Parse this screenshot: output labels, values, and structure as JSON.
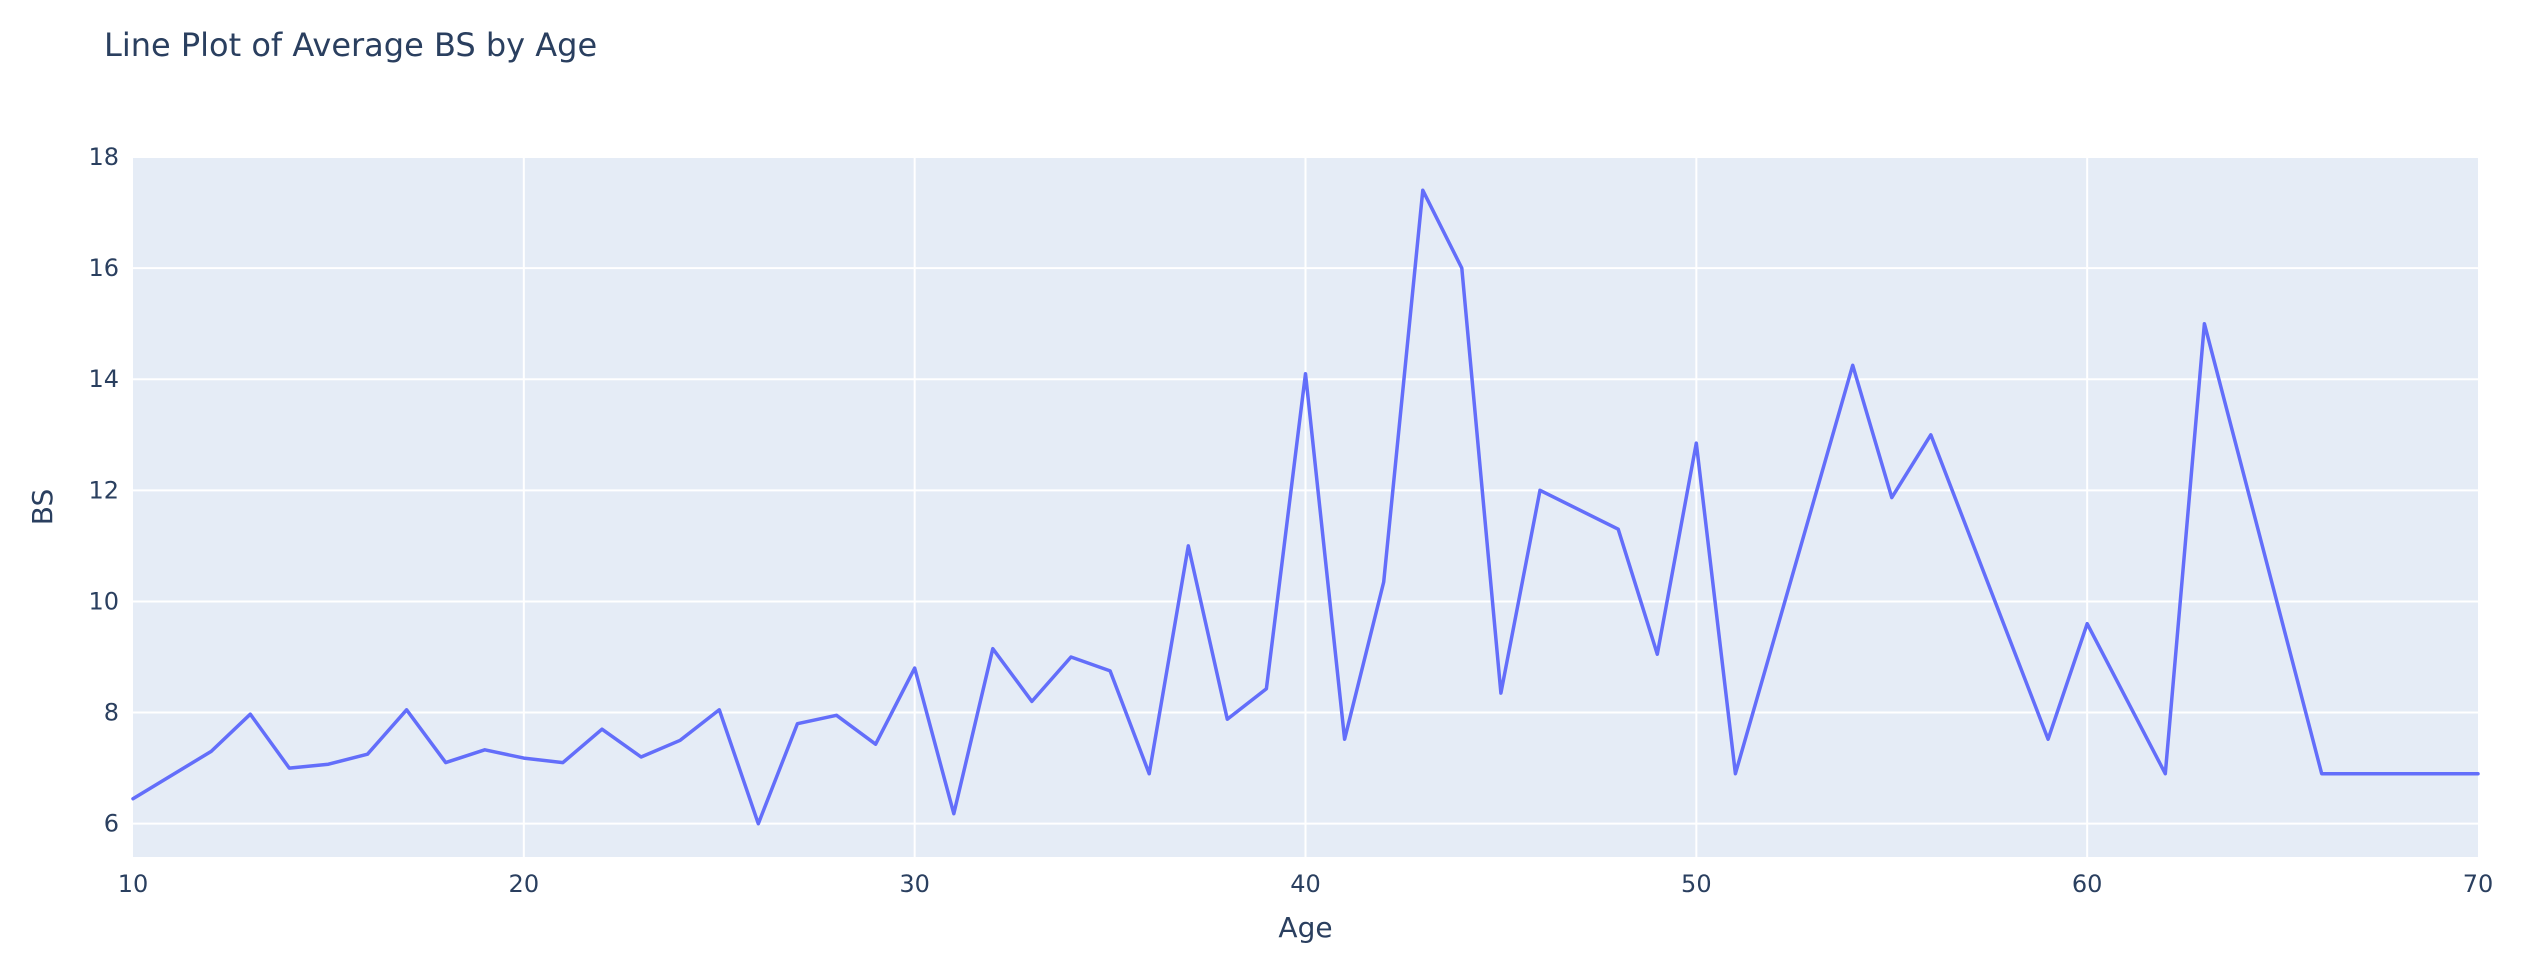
{
  "chart_data": {
    "type": "line",
    "title": "Line Plot of Average BS by Age",
    "xlabel": "Age",
    "ylabel": "BS",
    "xlim": [
      10,
      70
    ],
    "ylim": [
      5.4,
      18
    ],
    "xticks": [
      10,
      20,
      30,
      40,
      50,
      60,
      70
    ],
    "yticks": [
      6,
      8,
      10,
      12,
      14,
      16,
      18
    ],
    "grid": true,
    "colors": {
      "line": "#636efa",
      "plot_bg": "#e5ecf6",
      "grid": "#ffffff",
      "text": "#2a3f5f"
    },
    "x": [
      10,
      12,
      13,
      14,
      15,
      16,
      17,
      18,
      19,
      20,
      21,
      22,
      23,
      24,
      25,
      26,
      27,
      28,
      29,
      30,
      31,
      32,
      33,
      34,
      35,
      36,
      37,
      38,
      39,
      40,
      41,
      42,
      43,
      44,
      45,
      46,
      48,
      49,
      50,
      51,
      54,
      55,
      56,
      59,
      60,
      62,
      63,
      66,
      70
    ],
    "y": [
      6.45,
      7.3,
      7.97,
      7.0,
      7.07,
      7.25,
      8.05,
      7.1,
      7.33,
      7.18,
      7.1,
      7.7,
      7.2,
      7.5,
      8.05,
      6.0,
      7.8,
      7.95,
      7.43,
      8.8,
      6.18,
      9.15,
      8.2,
      9.0,
      8.75,
      6.9,
      11.0,
      7.88,
      8.43,
      14.1,
      7.52,
      10.35,
      17.4,
      16.0,
      8.35,
      12.0,
      11.3,
      9.05,
      12.85,
      6.9,
      14.25,
      11.87,
      13.0,
      7.52,
      9.6,
      6.9,
      15.0,
      6.9,
      6.9
    ]
  }
}
